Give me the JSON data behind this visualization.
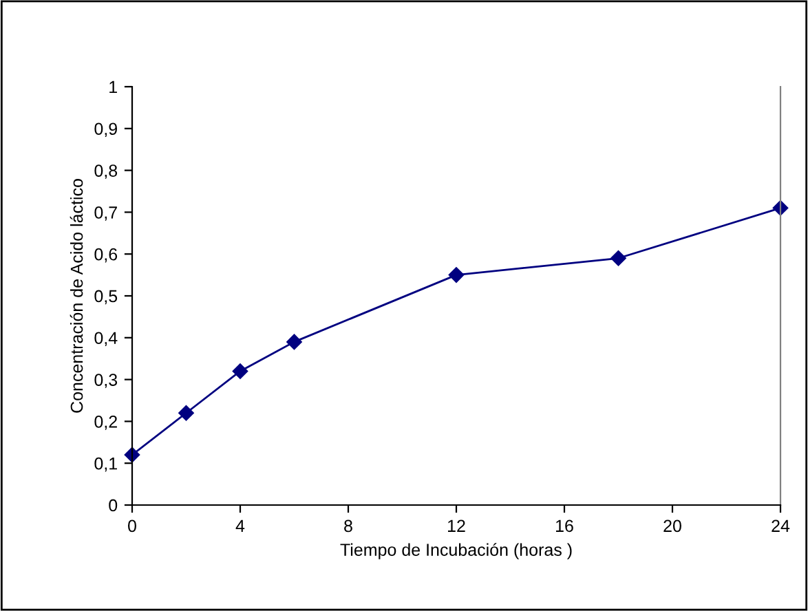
{
  "chart_data": {
    "type": "line",
    "xlabel": "Tiempo de Incubación (horas )",
    "ylabel": "Concentración de Acido láctico",
    "x": [
      0,
      2,
      4,
      6,
      12,
      18,
      24
    ],
    "series": [
      {
        "color": "#000080",
        "values": [
          0.12,
          0.22,
          0.32,
          0.39,
          0.55,
          0.59,
          0.71
        ]
      }
    ],
    "xlim": [
      0,
      24
    ],
    "xticks": [
      0,
      4,
      8,
      12,
      16,
      20,
      24
    ],
    "ylim": [
      0,
      1
    ],
    "yticks": [
      0,
      {
        "value": 0.1,
        "label": "0,1"
      },
      {
        "value": 0.2,
        "label": "0,2"
      },
      {
        "value": 0.3,
        "label": "0,3"
      },
      {
        "value": 0.4,
        "label": "0,4"
      },
      {
        "value": 0.5,
        "label": "0,5"
      },
      {
        "value": 0.6,
        "label": "0,6"
      },
      {
        "value": 0.7,
        "label": "0,7"
      },
      {
        "value": 0.8,
        "label": "0,8"
      },
      {
        "value": 0.9,
        "label": "0,9"
      },
      1
    ],
    "marker": "diamond",
    "line_style": "solid",
    "grid": false,
    "legend": false
  }
}
